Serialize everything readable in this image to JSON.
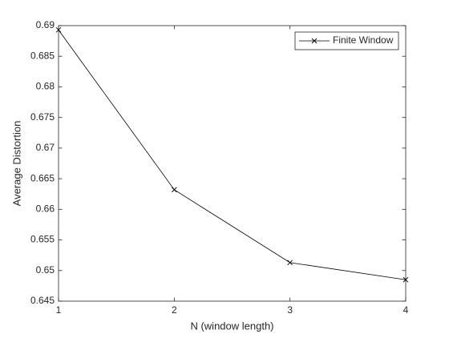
{
  "chart_data": {
    "type": "line",
    "xlabel": "N (window length)",
    "ylabel": "Average Distortion",
    "x": [
      1,
      2,
      3,
      4
    ],
    "series": [
      {
        "name": "Finite Window",
        "color": "#000000",
        "values": [
          0.6893,
          0.6632,
          0.6513,
          0.6485
        ]
      }
    ],
    "xlim": [
      1,
      4
    ],
    "xticks": [
      1,
      2,
      3,
      4
    ],
    "ylim": [
      0.645,
      0.69
    ],
    "yticks": [
      0.645,
      0.65,
      0.655,
      0.66,
      0.665,
      0.67,
      0.675,
      0.68,
      0.685,
      0.69
    ],
    "legend": "top-right",
    "grid": false
  }
}
